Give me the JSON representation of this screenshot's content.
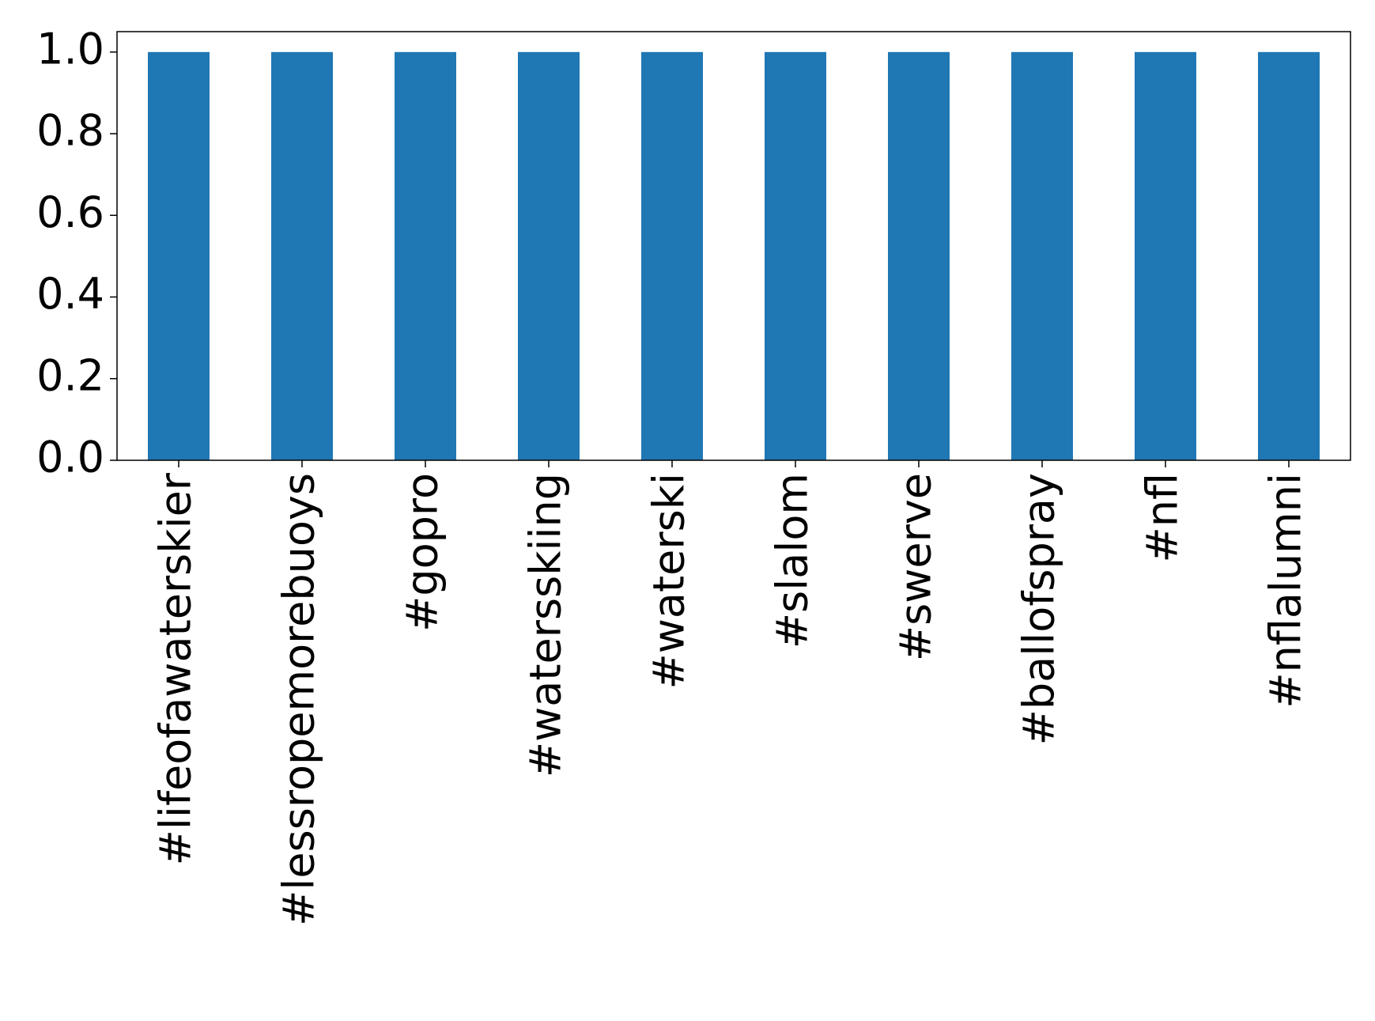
{
  "chart_data": {
    "type": "bar",
    "categories": [
      "#lifeofawaterskier",
      "#lessropemorebuoys",
      "#gopro",
      "#watersskiing",
      "#waterski",
      "#slalom",
      "#swerve",
      "#ballofspray",
      "#nfl",
      "#nflalumni"
    ],
    "values": [
      1,
      1,
      1,
      1,
      1,
      1,
      1,
      1,
      1,
      1
    ],
    "color": "#1f77b4",
    "ylim": [
      0,
      1.05
    ],
    "yticks": [
      {
        "value": 0,
        "label": "0.0"
      },
      0.2,
      0.4,
      0.6,
      0.8,
      {
        "value": 1,
        "label": "1.0"
      }
    ],
    "grid": false
  }
}
